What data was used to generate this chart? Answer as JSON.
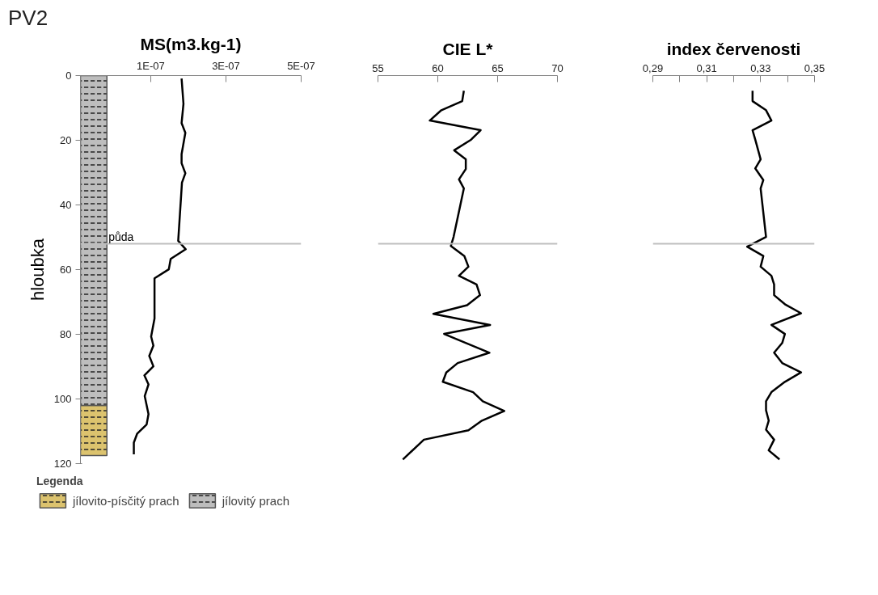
{
  "chart_data": [
    {
      "type": "line",
      "title": "PV2",
      "xlabel": "MS(m3.kg-1)",
      "ylabel": "hloubka",
      "legend_title": "Legenda",
      "legend": "bottom left",
      "xlim": [
        -8.7e-08,
        5e-07
      ],
      "xticks": [
        {
          "value": 1e-07,
          "label": "1E-07"
        },
        {
          "value": 3e-07,
          "label": "3E-07"
        },
        {
          "value": 5e-07,
          "label": "5E-07"
        }
      ],
      "ylim": [
        120,
        0
      ],
      "yticks": [
        0,
        20,
        40,
        60,
        80,
        100,
        120
      ],
      "ref_lines": [
        {
          "axis": "y",
          "value": 52,
          "label": "půda",
          "color": "#bfbfbf"
        }
      ],
      "bands": [
        {
          "axis": "y",
          "from": 102,
          "to": 117.5,
          "label": "jílovito-písčitý prach",
          "color": "#dcc36e"
        },
        {
          "axis": "y",
          "from": 0,
          "to": 102,
          "label": "jílovitý prach",
          "color": "#bdbdbd"
        }
      ],
      "series": [
        {
          "color": "#000000",
          "x": [
            1.82e-07,
            1.87e-07,
            1.82e-07,
            1.92e-07,
            1.82e-07,
            1.82e-07,
            1.92e-07,
            1.83e-07,
            1.73e-07,
            1.93e-07,
            1.53e-07,
            1.48e-07,
            1.1e-07,
            1.1e-07,
            1.01e-07,
            1.07e-07,
            9.6e-08,
            1.07e-07,
            8.3e-08,
            9.4e-08,
            8.4e-08,
            9.4e-08,
            8.9e-08,
            6.4e-08,
            5.5e-08,
            5.5e-08
          ],
          "values": [
            0.9,
            8.7,
            14.7,
            17.7,
            24.3,
            27.1,
            30.2,
            33.1,
            51.1,
            53.7,
            56.7,
            59.9,
            62.7,
            75.1,
            80.7,
            83.5,
            86.7,
            89.9,
            92.7,
            95.5,
            99.1,
            104.7,
            107.9,
            110.7,
            113.5,
            117.1
          ]
        }
      ]
    },
    {
      "type": "line",
      "xlabel": "CIE L*",
      "tick_labels": "x",
      "xlim": [
        55,
        70
      ],
      "xticks": [
        55,
        60,
        65,
        70
      ],
      "ylim": [
        120,
        0
      ],
      "ref_lines": [
        {
          "axis": "y",
          "value": 52,
          "color": "#bfbfbf"
        }
      ],
      "series": [
        {
          "color": "#000000",
          "x": [
            62.18,
            62.04,
            60.3,
            59.33,
            63.58,
            62.79,
            61.37,
            62.34,
            62.34,
            61.77,
            62.18,
            61.32,
            61.09,
            62.22,
            62.56,
            61.77,
            63.24,
            63.53,
            62.45,
            59.63,
            64.37,
            60.53,
            64.32,
            61.66,
            60.71,
            60.42,
            62.95,
            63.76,
            65.56,
            63.69,
            62.56,
            58.84,
            57.08
          ],
          "values": [
            4.7,
            7.9,
            10.7,
            13.9,
            16.9,
            19.8,
            23.1,
            25.9,
            28.9,
            32.1,
            34.9,
            49.9,
            52.7,
            55.8,
            59.1,
            61.9,
            64.6,
            67.9,
            71.0,
            73.7,
            77.1,
            79.9,
            85.7,
            88.9,
            91.8,
            94.7,
            97.9,
            100.7,
            103.7,
            106.7,
            109.7,
            112.6,
            118.7
          ]
        }
      ]
    },
    {
      "type": "line",
      "xlabel": "index červenosti",
      "tick_labels": "x",
      "xlim": [
        0.29,
        0.35
      ],
      "xticks": [
        {
          "value": 0.29,
          "label": "0,29"
        },
        {
          "value": 0.3,
          "label": null
        },
        {
          "value": 0.31,
          "label": "0,31"
        },
        {
          "value": 0.32,
          "label": null
        },
        {
          "value": 0.33,
          "label": "0,33"
        },
        {
          "value": 0.34,
          "label": null
        },
        {
          "value": 0.35,
          "label": "0,35"
        }
      ],
      "ylim": [
        120,
        0
      ],
      "ref_lines": [
        {
          "axis": "y",
          "value": 52,
          "color": "#bfbfbf"
        }
      ],
      "series": [
        {
          "color": "#000000",
          "x": [
            0.327,
            0.327,
            0.332,
            0.334,
            0.327,
            0.328,
            0.33,
            0.328,
            0.331,
            0.33,
            0.332,
            0.325,
            0.331,
            0.33,
            0.334,
            0.335,
            0.335,
            0.339,
            0.345,
            0.334,
            0.339,
            0.338,
            0.335,
            0.338,
            0.345,
            0.339,
            0.334,
            0.332,
            0.332,
            0.333,
            0.332,
            0.335,
            0.333,
            0.337
          ],
          "values": [
            4.7,
            7.9,
            10.7,
            13.9,
            16.9,
            19.8,
            25.9,
            28.7,
            32.3,
            34.9,
            49.9,
            52.9,
            55.8,
            59.1,
            61.9,
            64.6,
            67.9,
            70.7,
            73.5,
            77.1,
            79.9,
            82.7,
            85.7,
            88.9,
            91.8,
            94.7,
            97.9,
            100.7,
            103.5,
            106.7,
            109.5,
            112.6,
            115.9,
            118.7
          ]
        }
      ]
    }
  ]
}
